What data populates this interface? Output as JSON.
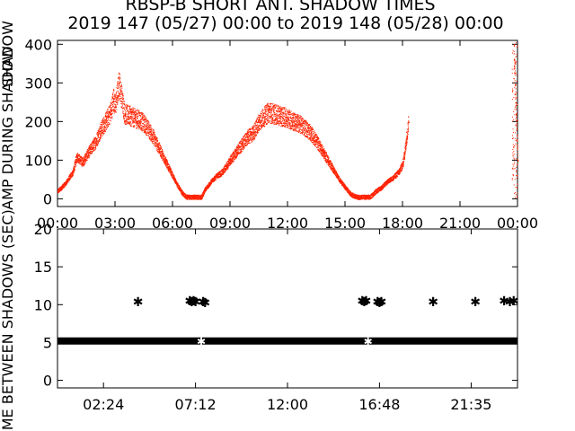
{
  "title": "RBSP-B SHORT ANT. SHADOW TIMES",
  "subtitle": "2019 147 (05/27) 00:00 to 2019 148 (05/28) 00:00",
  "colors": {
    "red": "#ff2200",
    "black": "#000000",
    "axis": "#000000"
  },
  "chart_data": [
    {
      "type": "scatter",
      "ylabel": "AMP DURING SHADOW",
      "ylabel_top": "SHADOW",
      "ylim": [
        -20,
        410
      ],
      "xlim_hours": [
        0,
        24
      ],
      "y_ticks": [
        "0",
        "100",
        "200",
        "300",
        "400"
      ],
      "y_tick_values": [
        0,
        100,
        200,
        300,
        400
      ],
      "x_ticks": [
        "00:00",
        "03:00",
        "06:00",
        "09:00",
        "12:00",
        "15:00",
        "18:00",
        "21:00",
        "00:00"
      ],
      "x_tick_values": [
        0,
        3,
        6,
        9,
        12,
        15,
        18,
        21,
        24
      ],
      "series": [
        {
          "color": "#ff2200",
          "points": [
            [
              0.0,
              20
            ],
            [
              0.4,
              40
            ],
            [
              0.8,
              70
            ],
            [
              1.0,
              110
            ],
            [
              1.3,
              95
            ],
            [
              1.6,
              120
            ],
            [
              2.0,
              150
            ],
            [
              2.2,
              175
            ],
            [
              2.5,
              200
            ],
            [
              2.8,
              230
            ],
            [
              2.9,
              260
            ],
            [
              3.0,
              240
            ],
            [
              3.2,
              300
            ],
            [
              3.5,
              220
            ],
            [
              3.8,
              215
            ],
            [
              4.0,
              210
            ],
            [
              4.3,
              205
            ],
            [
              4.6,
              190
            ],
            [
              4.8,
              175
            ],
            [
              5.0,
              160
            ],
            [
              5.3,
              130
            ],
            [
              5.6,
              100
            ],
            [
              5.9,
              70
            ],
            [
              6.2,
              40
            ],
            [
              6.5,
              15
            ],
            [
              6.7,
              5
            ],
            [
              7.5,
              5
            ],
            [
              7.7,
              25
            ],
            [
              8.0,
              45
            ],
            [
              8.3,
              60
            ],
            [
              8.6,
              70
            ],
            [
              9.0,
              100
            ],
            [
              9.3,
              120
            ],
            [
              9.6,
              140
            ],
            [
              9.9,
              160
            ],
            [
              10.2,
              170
            ],
            [
              10.5,
              200
            ],
            [
              10.8,
              215
            ],
            [
              11.0,
              225
            ],
            [
              11.3,
              220
            ],
            [
              11.6,
              215
            ],
            [
              12.0,
              210
            ],
            [
              12.3,
              200
            ],
            [
              12.6,
              195
            ],
            [
              12.9,
              185
            ],
            [
              13.2,
              170
            ],
            [
              13.5,
              150
            ],
            [
              13.8,
              125
            ],
            [
              14.1,
              100
            ],
            [
              14.4,
              75
            ],
            [
              14.7,
              50
            ],
            [
              15.0,
              30
            ],
            [
              15.3,
              12
            ],
            [
              15.6,
              5
            ],
            [
              16.3,
              5
            ],
            [
              16.6,
              20
            ],
            [
              16.9,
              30
            ],
            [
              17.2,
              45
            ],
            [
              17.5,
              55
            ],
            [
              17.8,
              70
            ],
            [
              18.0,
              90
            ],
            [
              18.1,
              120
            ],
            [
              18.2,
              160
            ],
            [
              18.3,
              200
            ],
            [
              23.8,
              400
            ],
            [
              23.9,
              250
            ],
            [
              24.0,
              100
            ]
          ]
        }
      ]
    },
    {
      "type": "scatter",
      "ylabel": "TIME BETWEEN SHADOWS (SEC)",
      "ylim": [
        -1,
        20
      ],
      "xlim_hours": [
        0,
        24
      ],
      "y_ticks": [
        "0",
        "5",
        "10",
        "15",
        "20"
      ],
      "y_tick_values": [
        0,
        5,
        10,
        15,
        20
      ],
      "x_ticks": [
        "02:24",
        "07:12",
        "12:00",
        "16:48",
        "21:35"
      ],
      "x_tick_values": [
        2.4,
        7.2,
        12.0,
        16.8,
        21.583
      ],
      "series": [
        {
          "marker": "*",
          "color": "#000000",
          "baseline_value": 5.2,
          "baseline_start": 0.0,
          "baseline_end": 24.0,
          "points": [
            [
              4.2,
              10.5
            ],
            [
              6.9,
              10.6
            ],
            [
              7.0,
              10.5
            ],
            [
              7.1,
              10.6
            ],
            [
              7.2,
              10.5
            ],
            [
              7.6,
              10.5
            ],
            [
              7.7,
              10.4
            ],
            [
              15.9,
              10.6
            ],
            [
              16.0,
              10.5
            ],
            [
              16.1,
              10.6
            ],
            [
              16.7,
              10.5
            ],
            [
              16.8,
              10.4
            ],
            [
              16.9,
              10.5
            ],
            [
              19.6,
              10.5
            ],
            [
              21.8,
              10.5
            ],
            [
              23.3,
              10.6
            ],
            [
              23.6,
              10.5
            ],
            [
              23.8,
              10.6
            ]
          ]
        }
      ]
    }
  ]
}
